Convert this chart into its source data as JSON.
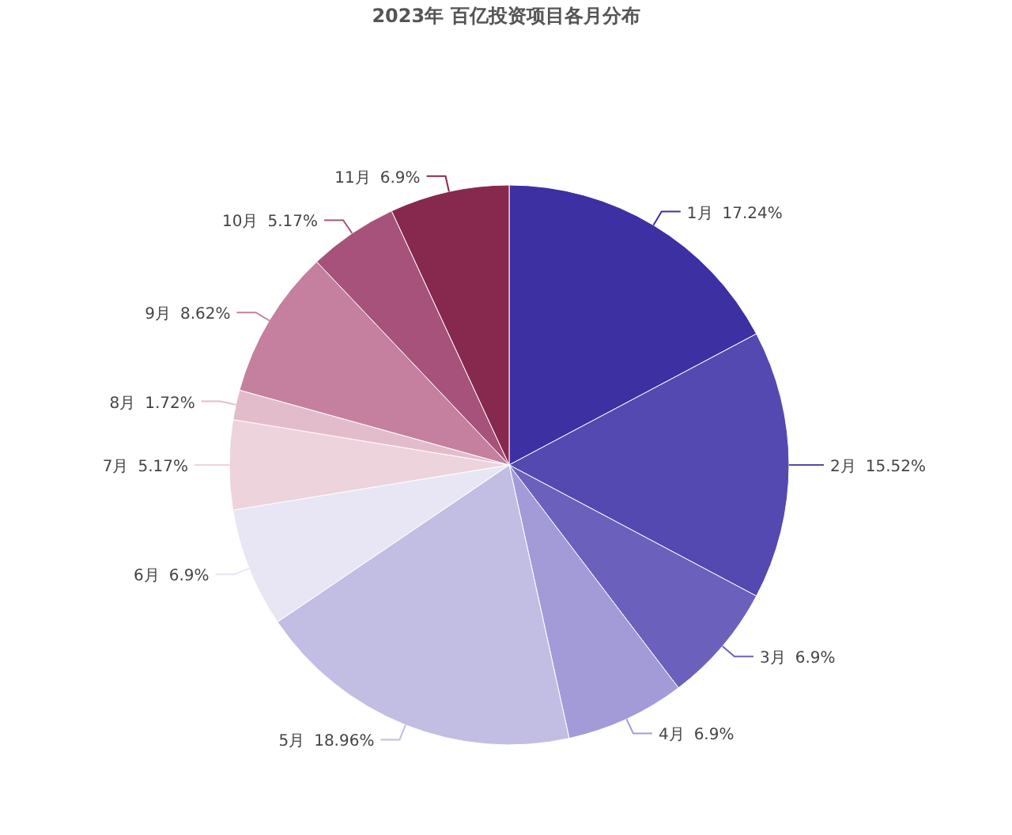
{
  "chart_data": {
    "type": "pie",
    "title": "2023年 百亿投资项目各月分布",
    "categories": [
      "1月",
      "2月",
      "3月",
      "4月",
      "5月",
      "6月",
      "7月",
      "8月",
      "9月",
      "10月",
      "11月"
    ],
    "values": [
      17.24,
      15.52,
      6.9,
      6.9,
      18.96,
      6.9,
      5.17,
      1.72,
      8.62,
      5.17,
      6.9
    ],
    "colors": [
      "#3d30a3",
      "#5449b0",
      "#6b61bc",
      "#a39bd8",
      "#c2bde3",
      "#e8e6f4",
      "#edd3dc",
      "#e3bccb",
      "#c57f9f",
      "#a6527a",
      "#87294f"
    ],
    "value_labels": [
      "17.24%",
      "15.52%",
      "6.9%",
      "6.9%",
      "18.96%",
      "6.9%",
      "5.17%",
      "1.72%",
      "8.62%",
      "5.17%",
      "6.9%"
    ]
  }
}
